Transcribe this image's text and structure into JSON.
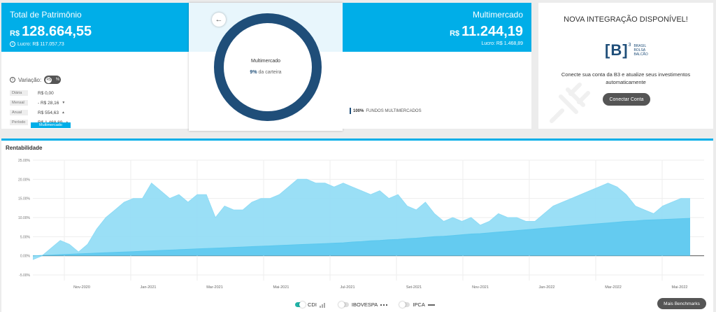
{
  "left": {
    "title": "Total de Patrimônio",
    "currency": "R$",
    "amount": "128.664,55",
    "lucro": "Lucro: R$ 117.057,73",
    "variacao_label": "Variação:",
    "toggle_left": "R$",
    "toggle_right": "%",
    "rows": [
      {
        "label": "Diária",
        "value": "R$ 0,00",
        "arrow": ""
      },
      {
        "label": "Mensal",
        "value": "- R$ 28,16",
        "arrow": "▼"
      },
      {
        "label": "Anual",
        "value": "R$ 554,63",
        "arrow": "▲"
      },
      {
        "label": "Período",
        "value": "R$ 1.468,89",
        "arrow": "▲"
      }
    ],
    "tag": "Multimercado"
  },
  "donut": {
    "back_icon": "←",
    "label": "Multimercado",
    "percent": "9%",
    "percent_text": "da carteira",
    "color": "#1f4e79"
  },
  "right": {
    "title": "Multimercado",
    "currency": "R$",
    "amount": "11.244,19",
    "lucro": "Lucro: R$ 1.468,89",
    "legend_pct": "100%",
    "legend_text": "FUNDOS MULTIMERCADOS"
  },
  "b3": {
    "title": "NOVA INTEGRAÇÃO DISPONÍVEL!",
    "logo_mark": "[B]",
    "logo_sup": "3",
    "logo_words": [
      "BRASIL",
      "BOLSA",
      "BALCÃO"
    ],
    "description": "Conecte sua conta da B3 e atualize seus investimentos automaticamente",
    "button": "Conectar Conta"
  },
  "chart": {
    "title": "Rentabilidade",
    "legend": [
      {
        "name": "CDI",
        "on": true,
        "mark": "bars"
      },
      {
        "name": "IBOVESPA",
        "on": false,
        "mark": "dots"
      },
      {
        "name": "IPCA",
        "on": false,
        "mark": "line"
      }
    ],
    "bench_button": "Mais Benchmarks"
  },
  "chart_data": {
    "type": "area",
    "ylim": [
      -5,
      25
    ],
    "yticks": [
      "25.00%",
      "20.00%",
      "15.00%",
      "10.00%",
      "5.00%",
      "0.00%",
      "-5.00%"
    ],
    "ytick_values": [
      25,
      20,
      15,
      10,
      5,
      0,
      -5
    ],
    "xticks": [
      "Nov-2020",
      "Jan-2021",
      "Mar-2021",
      "Mai-2021",
      "Jul-2021",
      "Set-2021",
      "Nov-2021",
      "Jan-2022",
      "Mar-2022",
      "Mai-2022"
    ],
    "series": [
      {
        "name": "Multimercado",
        "color": "#8fdbf5",
        "values": [
          -1,
          0,
          2,
          4,
          3,
          1,
          3,
          7,
          10,
          12,
          14,
          15,
          15,
          19,
          17,
          15,
          16,
          14,
          16,
          16,
          10,
          13,
          12,
          12,
          14,
          15,
          15,
          16,
          18,
          20,
          20,
          19,
          19,
          18,
          19,
          18,
          17,
          16,
          17,
          15,
          16,
          13,
          12,
          14,
          11,
          9,
          10,
          9,
          10,
          8,
          9,
          11,
          10,
          10,
          9,
          9,
          11,
          13,
          14,
          15,
          16,
          17,
          18,
          19,
          18,
          16,
          13,
          12,
          11,
          13,
          14,
          15,
          15
        ]
      },
      {
        "name": "CDI",
        "color": "#5bc8ee",
        "values": [
          0,
          0.1,
          0.2,
          0.3,
          0.4,
          0.5,
          0.6,
          0.7,
          0.8,
          0.9,
          1.0,
          1.1,
          1.2,
          1.3,
          1.4,
          1.5,
          1.6,
          1.7,
          1.8,
          1.9,
          2.0,
          2.1,
          2.2,
          2.3,
          2.4,
          2.5,
          2.6,
          2.7,
          2.8,
          2.9,
          3.0,
          3.1,
          3.2,
          3.3,
          3.4,
          3.6,
          3.7,
          3.9,
          4.0,
          4.2,
          4.3,
          4.5,
          4.6,
          4.8,
          5.0,
          5.1,
          5.3,
          5.5,
          5.7,
          5.8,
          6.0,
          6.2,
          6.4,
          6.6,
          6.8,
          7.0,
          7.2,
          7.4,
          7.6,
          7.8,
          8.0,
          8.2,
          8.4,
          8.6,
          8.8,
          9.0,
          9.1,
          9.3,
          9.4,
          9.5,
          9.6,
          9.7,
          9.8
        ]
      }
    ]
  }
}
